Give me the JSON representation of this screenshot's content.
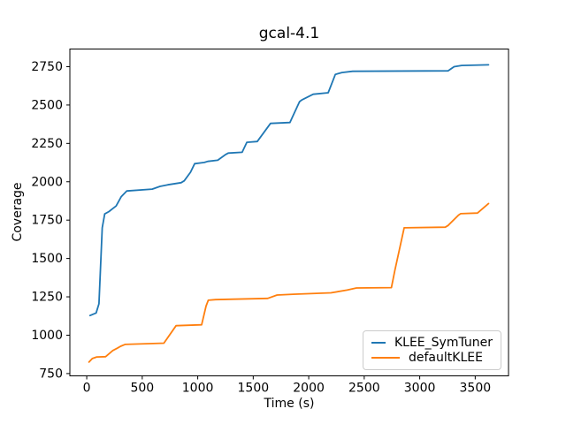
{
  "chart_data": {
    "type": "line",
    "title": "gcal-4.1",
    "xlabel": "Time (s)",
    "ylabel": "Coverage",
    "xlim": [
      -152,
      3800
    ],
    "ylim": [
      735,
      2865
    ],
    "x_ticks": [
      0,
      500,
      1000,
      1500,
      2000,
      2500,
      3000,
      3500
    ],
    "y_ticks": [
      750,
      1000,
      1250,
      1500,
      1750,
      2000,
      2250,
      2500,
      2750
    ],
    "grid": false,
    "legend_position": "lower right",
    "series": [
      {
        "name": "KLEE_SymTuner",
        "color": "#1f77b4",
        "points": [
          [
            30,
            1128
          ],
          [
            85,
            1145
          ],
          [
            110,
            1205
          ],
          [
            140,
            1700
          ],
          [
            162,
            1790
          ],
          [
            200,
            1806
          ],
          [
            265,
            1842
          ],
          [
            310,
            1902
          ],
          [
            360,
            1940
          ],
          [
            590,
            1952
          ],
          [
            660,
            1970
          ],
          [
            730,
            1980
          ],
          [
            800,
            1988
          ],
          [
            850,
            1994
          ],
          [
            878,
            2006
          ],
          [
            935,
            2062
          ],
          [
            972,
            2118
          ],
          [
            1060,
            2126
          ],
          [
            1090,
            2133
          ],
          [
            1180,
            2140
          ],
          [
            1248,
            2176
          ],
          [
            1275,
            2187
          ],
          [
            1400,
            2192
          ],
          [
            1442,
            2257
          ],
          [
            1536,
            2262
          ],
          [
            1656,
            2380
          ],
          [
            1830,
            2386
          ],
          [
            1917,
            2522
          ],
          [
            1937,
            2533
          ],
          [
            2040,
            2570
          ],
          [
            2175,
            2580
          ],
          [
            2240,
            2700
          ],
          [
            2300,
            2712
          ],
          [
            2396,
            2720
          ],
          [
            3255,
            2723
          ],
          [
            3310,
            2750
          ],
          [
            3378,
            2758
          ],
          [
            3620,
            2762
          ]
        ]
      },
      {
        "name": "defaultKLEE",
        "color": "#ff7f0e",
        "points": [
          [
            20,
            825
          ],
          [
            50,
            848
          ],
          [
            90,
            858
          ],
          [
            170,
            860
          ],
          [
            235,
            900
          ],
          [
            275,
            915
          ],
          [
            305,
            928
          ],
          [
            345,
            940
          ],
          [
            695,
            948
          ],
          [
            805,
            1062
          ],
          [
            1035,
            1068
          ],
          [
            1075,
            1190
          ],
          [
            1095,
            1228
          ],
          [
            1160,
            1232
          ],
          [
            1630,
            1240
          ],
          [
            1715,
            1262
          ],
          [
            1860,
            1267
          ],
          [
            2200,
            1276
          ],
          [
            2345,
            1294
          ],
          [
            2430,
            1308
          ],
          [
            2745,
            1310
          ],
          [
            2775,
            1420
          ],
          [
            2860,
            1700
          ],
          [
            3230,
            1704
          ],
          [
            3255,
            1715
          ],
          [
            3350,
            1783
          ],
          [
            3370,
            1792
          ],
          [
            3520,
            1796
          ],
          [
            3620,
            1858
          ]
        ]
      }
    ]
  }
}
